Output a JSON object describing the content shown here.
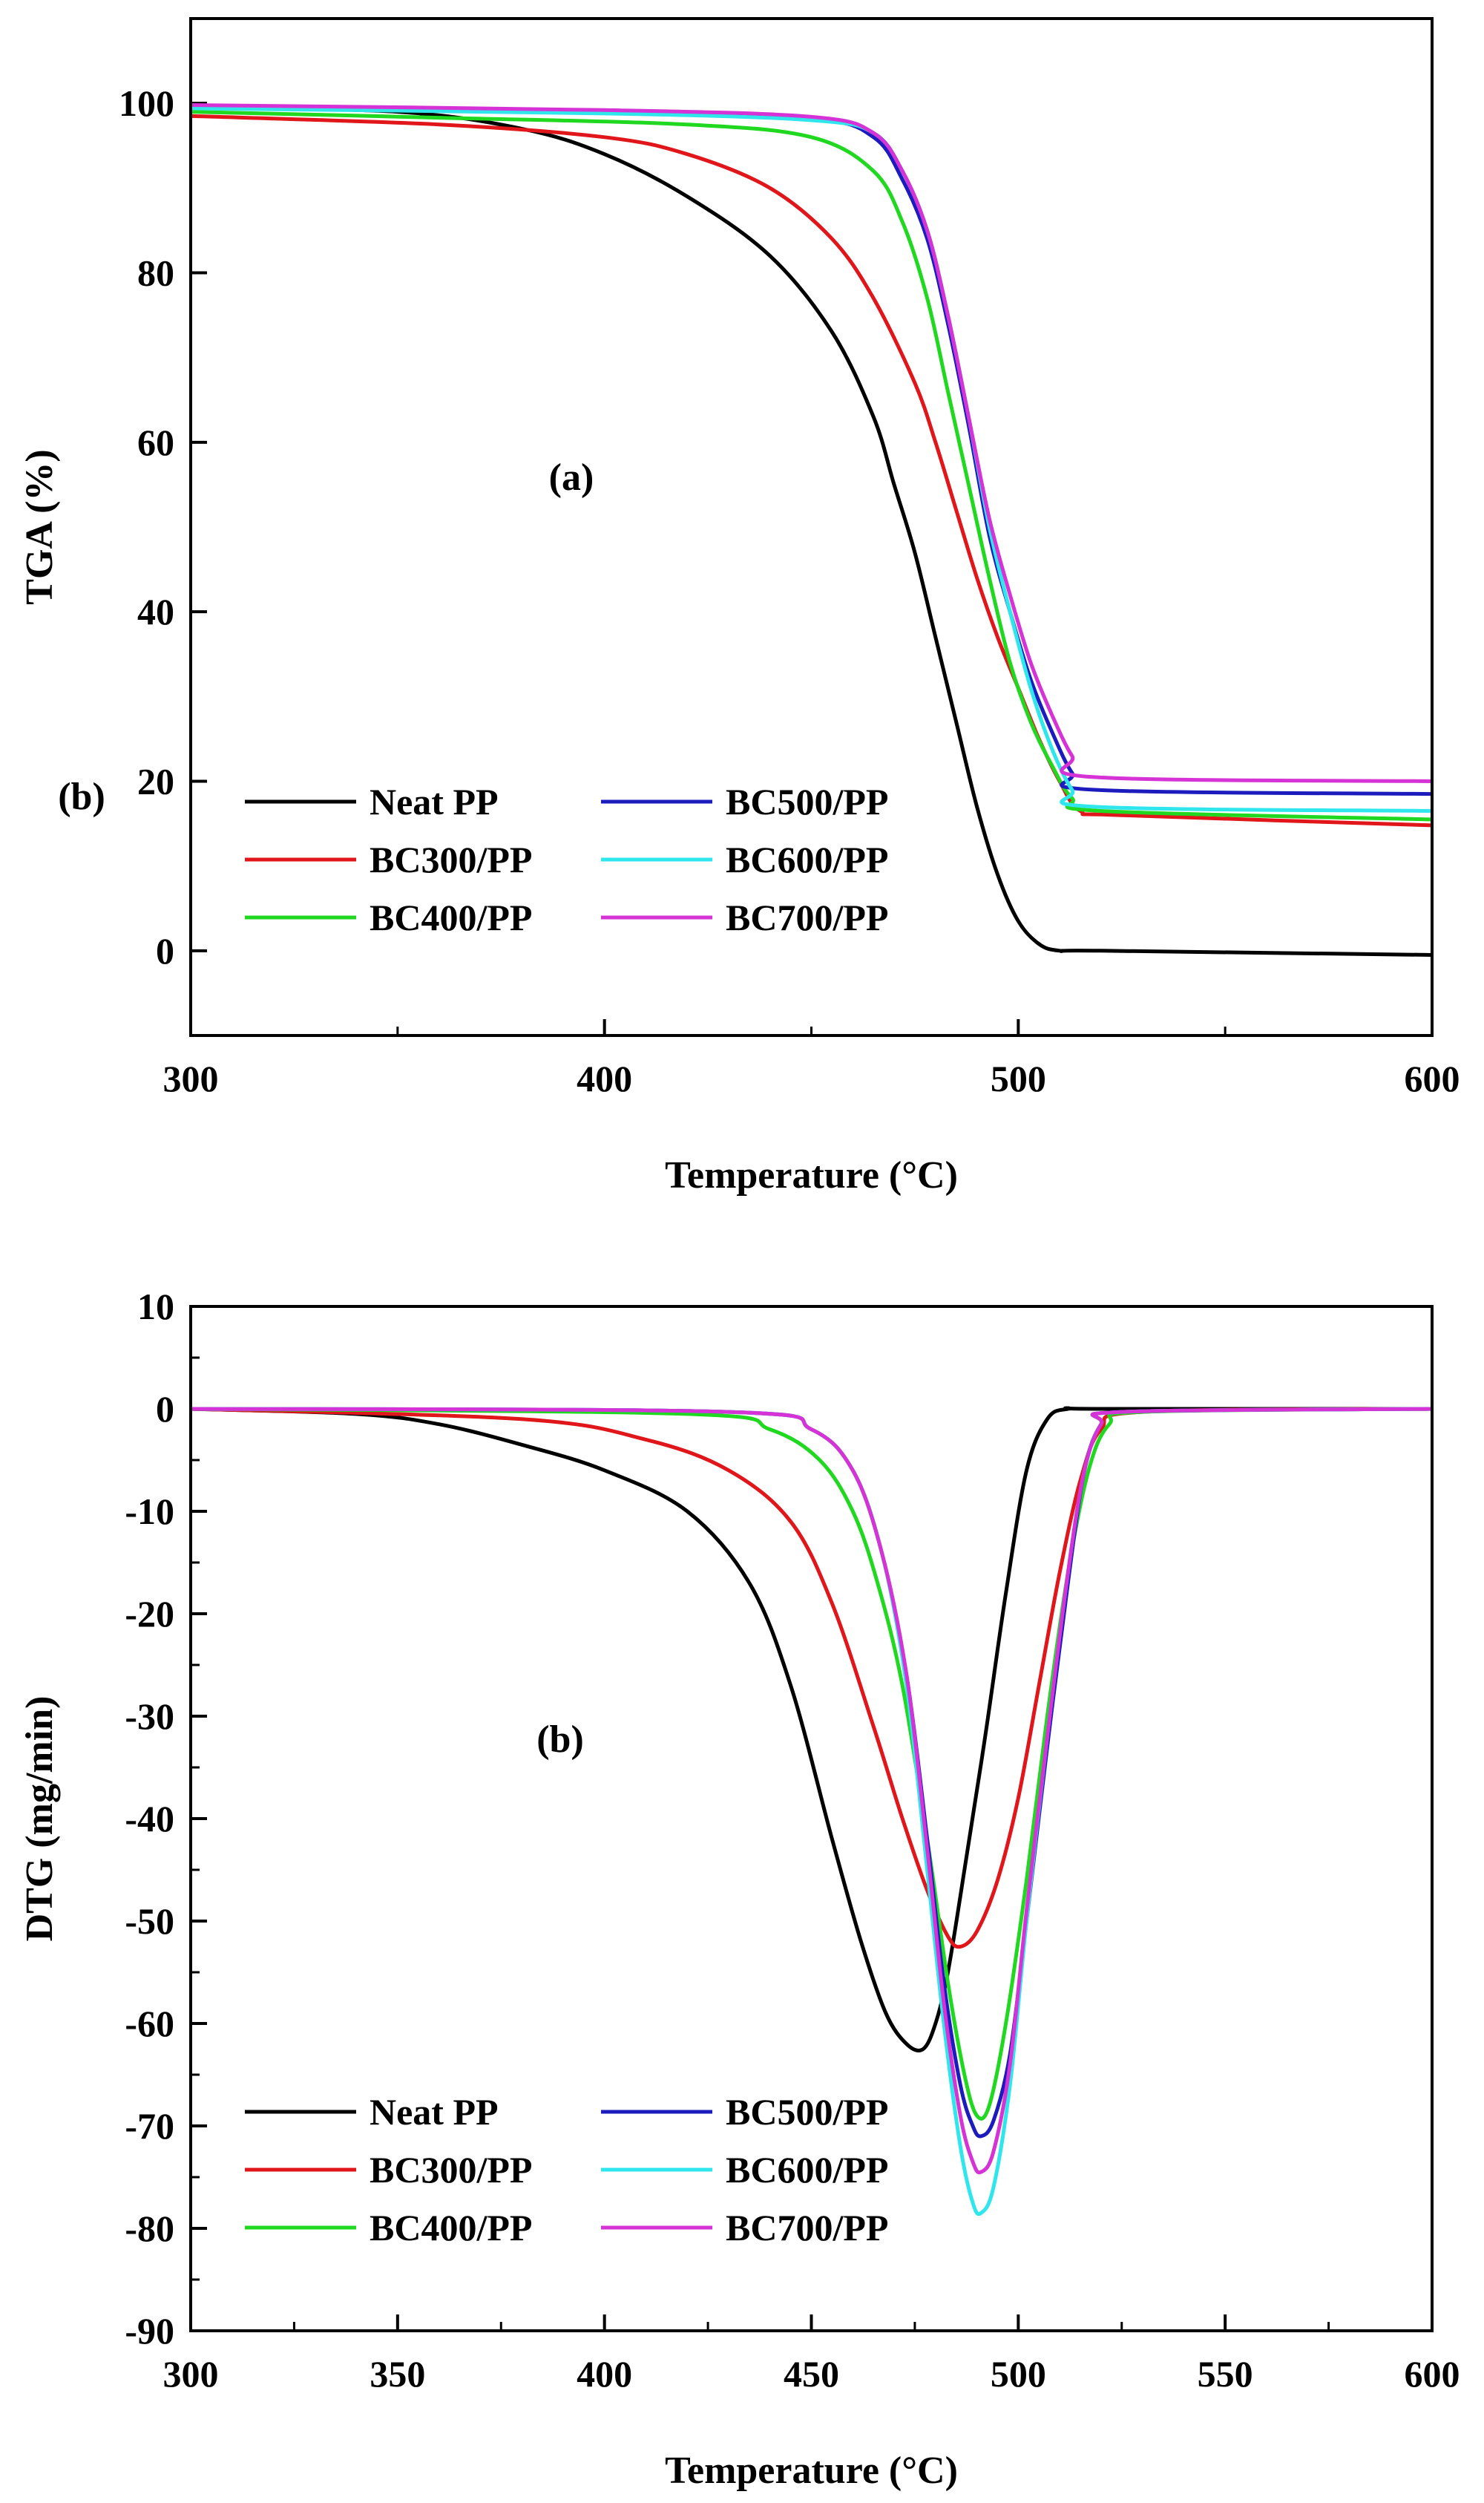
{
  "chart_data": [
    {
      "type": "line",
      "panel_label": "(a)",
      "stray_label": "(b)",
      "xlabel": "Temperature (°C)",
      "ylabel": "TGA (%)",
      "xlim": [
        300,
        600
      ],
      "ylim": [
        -10,
        110
      ],
      "xticks": [
        300,
        400,
        500,
        600
      ],
      "yticks": [
        0,
        20,
        40,
        60,
        80,
        100
      ],
      "legend_position": "bottom-left",
      "series": [
        {
          "name": "Neat PP",
          "color": "#000000",
          "x": [
            300,
            350,
            380,
            400,
            420,
            440,
            455,
            465,
            470,
            475,
            480,
            485,
            490,
            495,
            500,
            505,
            510,
            520,
            600
          ],
          "y": [
            99.5,
            99,
            97,
            94,
            89,
            82,
            73,
            63,
            55,
            47,
            37,
            27,
            17,
            9,
            3.5,
            0.8,
            0,
            0,
            -0.5
          ]
        },
        {
          "name": "BC300/PP",
          "color": "#e0161a",
          "x": [
            300,
            360,
            400,
            420,
            440,
            455,
            465,
            475,
            480,
            485,
            490,
            495,
            500,
            505,
            510,
            515,
            525,
            600
          ],
          "y": [
            98.5,
            97.5,
            96,
            94,
            90,
            84,
            77,
            67,
            60,
            52,
            44,
            37,
            31,
            25,
            20,
            16.5,
            16,
            14.8
          ]
        },
        {
          "name": "BC400/PP",
          "color": "#1fd81f",
          "x": [
            300,
            360,
            420,
            450,
            465,
            472,
            478,
            483,
            488,
            493,
            498,
            503,
            508,
            513,
            520,
            600
          ],
          "y": [
            99,
            98.3,
            97.5,
            96,
            92,
            86,
            77,
            66,
            55,
            44,
            34,
            27,
            22,
            18,
            16.5,
            15.5
          ]
        },
        {
          "name": "BC500/PP",
          "color": "#1c1cbe",
          "x": [
            300,
            400,
            450,
            465,
            472,
            478,
            483,
            488,
            493,
            498,
            503,
            508,
            513,
            518,
            600
          ],
          "y": [
            99.6,
            99,
            98.2,
            96,
            91,
            84,
            74,
            62,
            49,
            40,
            32,
            26,
            21,
            19,
            18.5
          ]
        },
        {
          "name": "BC600/PP",
          "color": "#2ee6ec",
          "x": [
            300,
            400,
            450,
            465,
            472,
            478,
            483,
            488,
            493,
            498,
            503,
            508,
            513,
            518,
            600
          ],
          "y": [
            99.4,
            98.8,
            98,
            96.5,
            92,
            85,
            75,
            63,
            50,
            40,
            31,
            24,
            19,
            17,
            16.5
          ]
        },
        {
          "name": "BC700/PP",
          "color": "#d633d6",
          "x": [
            300,
            400,
            450,
            465,
            472,
            478,
            483,
            488,
            493,
            498,
            503,
            508,
            513,
            518,
            600
          ],
          "y": [
            99.8,
            99.2,
            98.4,
            96.5,
            92,
            85,
            75,
            63,
            51,
            42,
            34,
            28,
            23,
            20.5,
            20
          ]
        }
      ]
    },
    {
      "type": "line",
      "panel_label": "(b)",
      "xlabel": "Temperature (°C)",
      "ylabel": "DTG (mg/min)",
      "xlim": [
        300,
        600
      ],
      "ylim": [
        -90,
        10
      ],
      "xticks": [
        300,
        350,
        400,
        450,
        500,
        550,
        600
      ],
      "yticks": [
        10,
        0,
        -10,
        -20,
        -30,
        -40,
        -50,
        -60,
        -70,
        -80,
        -90
      ],
      "legend_position": "bottom-left",
      "series": [
        {
          "name": "Neat PP",
          "color": "#000000",
          "x": [
            300,
            340,
            360,
            380,
            400,
            420,
            435,
            445,
            455,
            462,
            468,
            473,
            477,
            480,
            483,
            487,
            492,
            497,
            502,
            507,
            512,
            520,
            600
          ],
          "y": [
            0,
            -0.5,
            -1.5,
            -3.5,
            -6,
            -10,
            -17,
            -27,
            -42,
            -52,
            -59,
            -62,
            -62.5,
            -60,
            -55,
            -45,
            -32,
            -18,
            -6,
            -1,
            0,
            0,
            0
          ]
        },
        {
          "name": "BC300/PP",
          "color": "#e0161a",
          "x": [
            300,
            380,
            410,
            430,
            445,
            455,
            465,
            472,
            478,
            483,
            486,
            490,
            495,
            500,
            505,
            510,
            515,
            520,
            530,
            600
          ],
          "y": [
            0,
            -1,
            -3,
            -6,
            -11,
            -19,
            -31,
            -40,
            -47,
            -51.5,
            -52.5,
            -51,
            -46,
            -38,
            -27,
            -16,
            -7,
            -2,
            -0.3,
            0
          ]
        },
        {
          "name": "BC400/PP",
          "color": "#1fd81f",
          "x": [
            300,
            420,
            440,
            452,
            460,
            466,
            472,
            478,
            483,
            487,
            490,
            493,
            497,
            502,
            507,
            512,
            517,
            522,
            530,
            600
          ],
          "y": [
            0,
            -0.5,
            -2,
            -5,
            -10,
            -17,
            -27,
            -42,
            -56,
            -65,
            -69,
            -68,
            -60,
            -46,
            -30,
            -16,
            -6,
            -1.5,
            -0.3,
            0
          ]
        },
        {
          "name": "BC500/PP",
          "color": "#1c1cbe",
          "x": [
            300,
            430,
            450,
            460,
            467,
            473,
            478,
            482,
            486,
            489,
            491,
            494,
            498,
            502,
            507,
            512,
            516,
            520,
            525,
            600
          ],
          "y": [
            0,
            -0.3,
            -2,
            -6,
            -14,
            -26,
            -42,
            -56,
            -66,
            -70,
            -71,
            -69.5,
            -63,
            -50,
            -33,
            -17,
            -6,
            -1.5,
            -0.3,
            0
          ]
        },
        {
          "name": "BC600/PP",
          "color": "#2ee6ec",
          "x": [
            300,
            430,
            450,
            460,
            467,
            473,
            478,
            482,
            486,
            489,
            491,
            494,
            498,
            502,
            507,
            512,
            516,
            520,
            525,
            600
          ],
          "y": [
            0,
            -0.3,
            -2,
            -6,
            -14,
            -27,
            -45,
            -60,
            -72,
            -77.5,
            -78.5,
            -76,
            -66,
            -50,
            -32,
            -16,
            -6,
            -1.5,
            -0.3,
            0
          ]
        },
        {
          "name": "BC700/PP",
          "color": "#d633d6",
          "x": [
            300,
            430,
            450,
            460,
            467,
            473,
            478,
            482,
            486,
            489,
            491,
            494,
            498,
            502,
            507,
            512,
            516,
            520,
            525,
            600
          ],
          "y": [
            0,
            -0.3,
            -2,
            -6,
            -14,
            -26,
            -43,
            -58,
            -69,
            -73.5,
            -74.5,
            -72.5,
            -64,
            -49,
            -32,
            -16,
            -6,
            -1.5,
            -0.3,
            0
          ]
        }
      ]
    }
  ]
}
